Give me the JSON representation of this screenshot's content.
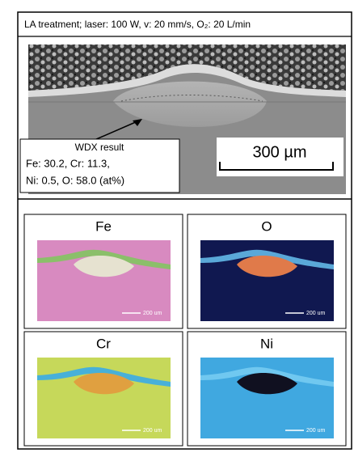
{
  "header": {
    "title": "LA treatment; laser: 100 W, v: 20 mm/s, O₂: 20 L/min"
  },
  "sem": {
    "callout": {
      "title": "WDX result",
      "lines": [
        "Fe: 30.2, Cr: 11.3,",
        "Ni: 0.5, O: 58.0 (at%)"
      ]
    },
    "scale_bar": "300 µm"
  },
  "maps": [
    {
      "element": "Fe",
      "scale_bar": "200 um"
    },
    {
      "element": "O",
      "scale_bar": "200 um"
    },
    {
      "element": "Cr",
      "scale_bar": "200 um"
    },
    {
      "element": "Ni",
      "scale_bar": "200 um"
    }
  ]
}
